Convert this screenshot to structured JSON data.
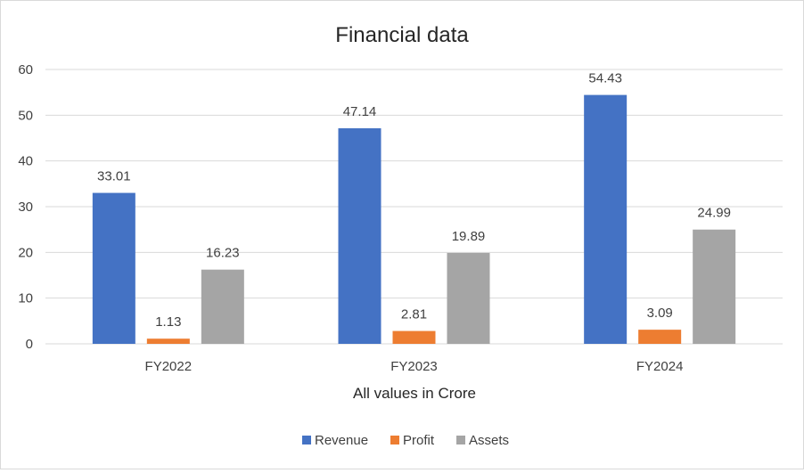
{
  "chart_data": {
    "type": "bar",
    "title": "Financial data",
    "xlabel": "All values in Crore",
    "ylabel": "",
    "categories": [
      "FY2022",
      "FY2023",
      "FY2024"
    ],
    "series": [
      {
        "name": "Revenue",
        "values": [
          33.01,
          47.14,
          54.43
        ],
        "color": "#4472C4"
      },
      {
        "name": "Profit",
        "values": [
          1.13,
          2.81,
          3.09
        ],
        "color": "#ED7D31"
      },
      {
        "name": "Assets",
        "values": [
          16.23,
          19.89,
          24.99
        ],
        "color": "#A5A5A5"
      }
    ],
    "ylim": [
      0,
      60
    ],
    "yticks": [
      0,
      10,
      20,
      30,
      40,
      50,
      60
    ],
    "grid": true,
    "legend": "bottom",
    "data_labels": true
  }
}
